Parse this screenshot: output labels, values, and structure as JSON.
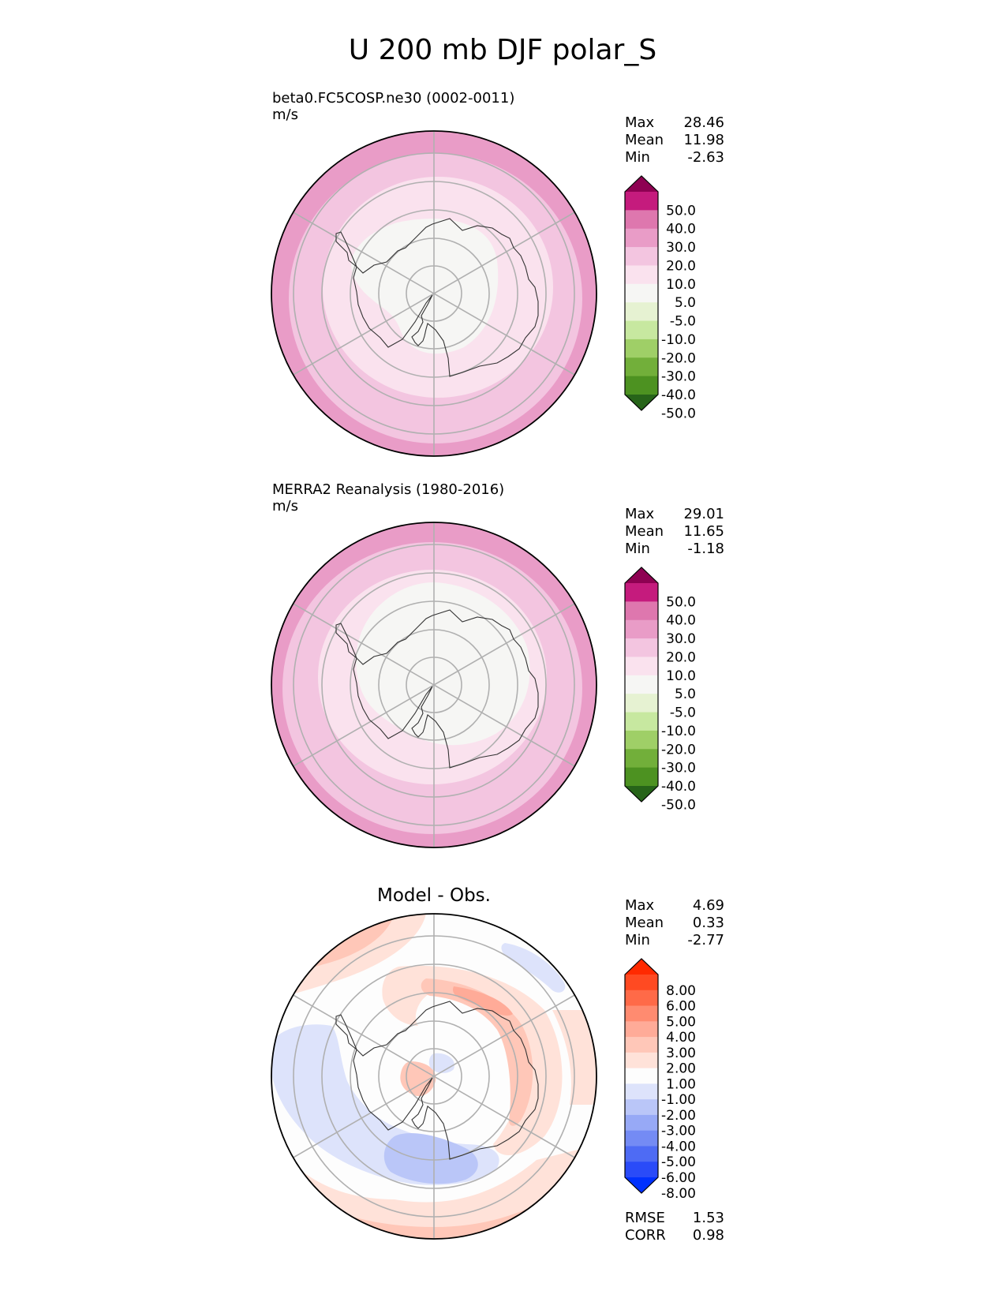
{
  "figure": {
    "title": "U 200 mb DJF polar_S"
  },
  "chart_data": [
    {
      "type": "heatmap",
      "projection": "south-polar stereographic",
      "title": "",
      "subtitle": "beta0.FC5COSP.ne30 (0002-0011)",
      "units": "m/s",
      "stats": [
        {
          "label": "Max",
          "value": "28.46"
        },
        {
          "label": "Mean",
          "value": "11.98"
        },
        {
          "label": "Min",
          "value": "-2.63"
        }
      ],
      "colorbar": {
        "ticks": [
          "50.0",
          "40.0",
          "30.0",
          "20.0",
          "10.0",
          "5.0",
          "-5.0",
          "-10.0",
          "-20.0",
          "-30.0",
          "-40.0",
          "-50.0"
        ],
        "colors": [
          "#8e0152",
          "#c51b7d",
          "#de77ae",
          "#e99cc7",
          "#f3c5e0",
          "#fae2ee",
          "#f6f6f4",
          "#e6f2d2",
          "#c7e8a0",
          "#9fcf67",
          "#72af3a",
          "#4d9221",
          "#276419"
        ],
        "extend": "both"
      },
      "contour_bands_m_s": [
        {
          "band": "-5 to 5",
          "region": "over East Antarctic plateau"
        },
        {
          "band": "5 to 10",
          "region": "Antarctic coastal ring"
        },
        {
          "band": "10 to 20",
          "region": "Southern Ocean ring"
        },
        {
          "band": "20 to 30",
          "region": "outer ring near map edge"
        }
      ]
    },
    {
      "type": "heatmap",
      "projection": "south-polar stereographic",
      "title": "",
      "subtitle": "MERRA2 Reanalysis (1980-2016)",
      "units": "m/s",
      "stats": [
        {
          "label": "Max",
          "value": "29.01"
        },
        {
          "label": "Mean",
          "value": "11.65"
        },
        {
          "label": "Min",
          "value": "-1.18"
        }
      ],
      "colorbar": {
        "ticks": [
          "50.0",
          "40.0",
          "30.0",
          "20.0",
          "10.0",
          "5.0",
          "-5.0",
          "-10.0",
          "-20.0",
          "-30.0",
          "-40.0",
          "-50.0"
        ],
        "colors": [
          "#8e0152",
          "#c51b7d",
          "#de77ae",
          "#e99cc7",
          "#f3c5e0",
          "#fae2ee",
          "#f6f6f4",
          "#e6f2d2",
          "#c7e8a0",
          "#9fcf67",
          "#72af3a",
          "#4d9221",
          "#276419"
        ],
        "extend": "both"
      },
      "contour_bands_m_s": [
        {
          "band": "-5 to 5",
          "region": "over the Antarctic continent"
        },
        {
          "band": "5 to 10",
          "region": "Antarctic coastal ring"
        },
        {
          "band": "10 to 20",
          "region": "Southern Ocean ring"
        },
        {
          "band": "20 to 30",
          "region": "outer ring near map edge"
        }
      ]
    },
    {
      "type": "heatmap",
      "projection": "south-polar stereographic",
      "title": "Model - Obs.",
      "subtitle": "",
      "units": "",
      "stats": [
        {
          "label": "Max",
          "value": "4.69"
        },
        {
          "label": "Mean",
          "value": "0.33"
        },
        {
          "label": "Min",
          "value": "-2.77"
        }
      ],
      "stats_bottom": [
        {
          "label": "RMSE",
          "value": "1.53"
        },
        {
          "label": "CORR",
          "value": "0.98"
        }
      ],
      "colorbar": {
        "ticks": [
          "8.00",
          "6.00",
          "5.00",
          "4.00",
          "3.00",
          "2.00",
          "1.00",
          "-1.00",
          "-2.00",
          "-3.00",
          "-4.00",
          "-5.00",
          "-6.00",
          "-8.00"
        ],
        "colors": [
          "#ff2a00",
          "#ff4a22",
          "#ff6a48",
          "#ff8b70",
          "#ffab98",
          "#ffc7b8",
          "#ffe2d9",
          "#fdfdfd",
          "#dde3fb",
          "#bac6f8",
          "#97a9f6",
          "#748bf4",
          "#4e6bf4",
          "#2a4bf8",
          "#0031ff"
        ],
        "extend": "both"
      },
      "contour_bands_m_s": [
        {
          "band": "2 to 3",
          "region": "East Antarctic margin"
        },
        {
          "band": "1 to 2",
          "region": "ring over Indian/Pacific sector"
        },
        {
          "band": "-1 to -2",
          "region": "Atlantic sector and Ross Sea"
        },
        {
          "band": "-2 to -3",
          "region": "south of Ross Sea"
        },
        {
          "band": "1 to 3",
          "region": "outer edge"
        }
      ]
    }
  ]
}
